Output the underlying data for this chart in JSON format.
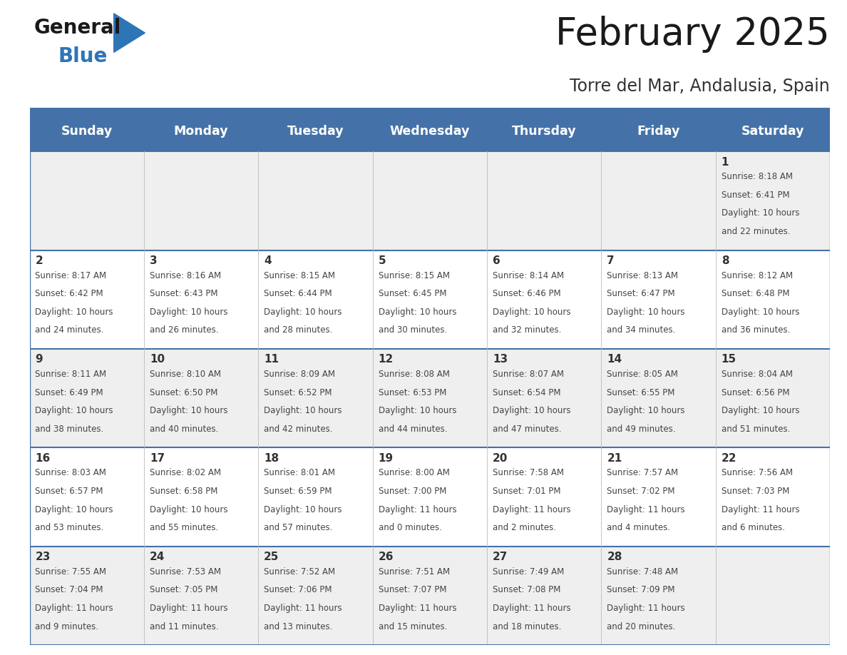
{
  "title": "February 2025",
  "subtitle": "Torre del Mar, Andalusia, Spain",
  "days_of_week": [
    "Sunday",
    "Monday",
    "Tuesday",
    "Wednesday",
    "Thursday",
    "Friday",
    "Saturday"
  ],
  "header_bg": "#4472A8",
  "header_text": "#FFFFFF",
  "row_bg_odd": "#EFEFEF",
  "row_bg_even": "#FFFFFF",
  "grid_line_color": "#4472A8",
  "date_color": "#333333",
  "info_color": "#444444",
  "title_color": "#1a1a1a",
  "subtitle_color": "#333333",
  "logo_black": "#1a1a1a",
  "logo_blue": "#2E75B6",
  "calendar_data": [
    [
      null,
      null,
      null,
      null,
      null,
      null,
      {
        "day": "1",
        "sunrise": "8:18 AM",
        "sunset": "6:41 PM",
        "daylight1": "Daylight: 10 hours",
        "daylight2": "and 22 minutes."
      }
    ],
    [
      {
        "day": "2",
        "sunrise": "8:17 AM",
        "sunset": "6:42 PM",
        "daylight1": "Daylight: 10 hours",
        "daylight2": "and 24 minutes."
      },
      {
        "day": "3",
        "sunrise": "8:16 AM",
        "sunset": "6:43 PM",
        "daylight1": "Daylight: 10 hours",
        "daylight2": "and 26 minutes."
      },
      {
        "day": "4",
        "sunrise": "8:15 AM",
        "sunset": "6:44 PM",
        "daylight1": "Daylight: 10 hours",
        "daylight2": "and 28 minutes."
      },
      {
        "day": "5",
        "sunrise": "8:15 AM",
        "sunset": "6:45 PM",
        "daylight1": "Daylight: 10 hours",
        "daylight2": "and 30 minutes."
      },
      {
        "day": "6",
        "sunrise": "8:14 AM",
        "sunset": "6:46 PM",
        "daylight1": "Daylight: 10 hours",
        "daylight2": "and 32 minutes."
      },
      {
        "day": "7",
        "sunrise": "8:13 AM",
        "sunset": "6:47 PM",
        "daylight1": "Daylight: 10 hours",
        "daylight2": "and 34 minutes."
      },
      {
        "day": "8",
        "sunrise": "8:12 AM",
        "sunset": "6:48 PM",
        "daylight1": "Daylight: 10 hours",
        "daylight2": "and 36 minutes."
      }
    ],
    [
      {
        "day": "9",
        "sunrise": "8:11 AM",
        "sunset": "6:49 PM",
        "daylight1": "Daylight: 10 hours",
        "daylight2": "and 38 minutes."
      },
      {
        "day": "10",
        "sunrise": "8:10 AM",
        "sunset": "6:50 PM",
        "daylight1": "Daylight: 10 hours",
        "daylight2": "and 40 minutes."
      },
      {
        "day": "11",
        "sunrise": "8:09 AM",
        "sunset": "6:52 PM",
        "daylight1": "Daylight: 10 hours",
        "daylight2": "and 42 minutes."
      },
      {
        "day": "12",
        "sunrise": "8:08 AM",
        "sunset": "6:53 PM",
        "daylight1": "Daylight: 10 hours",
        "daylight2": "and 44 minutes."
      },
      {
        "day": "13",
        "sunrise": "8:07 AM",
        "sunset": "6:54 PM",
        "daylight1": "Daylight: 10 hours",
        "daylight2": "and 47 minutes."
      },
      {
        "day": "14",
        "sunrise": "8:05 AM",
        "sunset": "6:55 PM",
        "daylight1": "Daylight: 10 hours",
        "daylight2": "and 49 minutes."
      },
      {
        "day": "15",
        "sunrise": "8:04 AM",
        "sunset": "6:56 PM",
        "daylight1": "Daylight: 10 hours",
        "daylight2": "and 51 minutes."
      }
    ],
    [
      {
        "day": "16",
        "sunrise": "8:03 AM",
        "sunset": "6:57 PM",
        "daylight1": "Daylight: 10 hours",
        "daylight2": "and 53 minutes."
      },
      {
        "day": "17",
        "sunrise": "8:02 AM",
        "sunset": "6:58 PM",
        "daylight1": "Daylight: 10 hours",
        "daylight2": "and 55 minutes."
      },
      {
        "day": "18",
        "sunrise": "8:01 AM",
        "sunset": "6:59 PM",
        "daylight1": "Daylight: 10 hours",
        "daylight2": "and 57 minutes."
      },
      {
        "day": "19",
        "sunrise": "8:00 AM",
        "sunset": "7:00 PM",
        "daylight1": "Daylight: 11 hours",
        "daylight2": "and 0 minutes."
      },
      {
        "day": "20",
        "sunrise": "7:58 AM",
        "sunset": "7:01 PM",
        "daylight1": "Daylight: 11 hours",
        "daylight2": "and 2 minutes."
      },
      {
        "day": "21",
        "sunrise": "7:57 AM",
        "sunset": "7:02 PM",
        "daylight1": "Daylight: 11 hours",
        "daylight2": "and 4 minutes."
      },
      {
        "day": "22",
        "sunrise": "7:56 AM",
        "sunset": "7:03 PM",
        "daylight1": "Daylight: 11 hours",
        "daylight2": "and 6 minutes."
      }
    ],
    [
      {
        "day": "23",
        "sunrise": "7:55 AM",
        "sunset": "7:04 PM",
        "daylight1": "Daylight: 11 hours",
        "daylight2": "and 9 minutes."
      },
      {
        "day": "24",
        "sunrise": "7:53 AM",
        "sunset": "7:05 PM",
        "daylight1": "Daylight: 11 hours",
        "daylight2": "and 11 minutes."
      },
      {
        "day": "25",
        "sunrise": "7:52 AM",
        "sunset": "7:06 PM",
        "daylight1": "Daylight: 11 hours",
        "daylight2": "and 13 minutes."
      },
      {
        "day": "26",
        "sunrise": "7:51 AM",
        "sunset": "7:07 PM",
        "daylight1": "Daylight: 11 hours",
        "daylight2": "and 15 minutes."
      },
      {
        "day": "27",
        "sunrise": "7:49 AM",
        "sunset": "7:08 PM",
        "daylight1": "Daylight: 11 hours",
        "daylight2": "and 18 minutes."
      },
      {
        "day": "28",
        "sunrise": "7:48 AM",
        "sunset": "7:09 PM",
        "daylight1": "Daylight: 11 hours",
        "daylight2": "and 20 minutes."
      },
      null
    ]
  ],
  "figsize": [
    11.88,
    9.18
  ],
  "dpi": 100
}
